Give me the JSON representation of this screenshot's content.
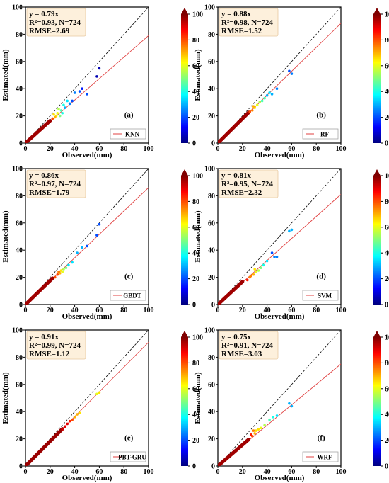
{
  "colorbar_ticks": [
    "0",
    "20",
    "40",
    "60",
    "80",
    "100"
  ],
  "colormap": [
    "#00007f",
    "#0000ff",
    "#007fff",
    "#00ffff",
    "#7fff7f",
    "#ffff00",
    "#ff7f00",
    "#ff0000",
    "#7f0000"
  ],
  "chart_data": [
    {
      "type": "scatter",
      "label": "(a)",
      "legend": "KNN",
      "stats": [
        "y = 0.79x",
        "R²=0.93, N=724",
        "RMSE=2.69"
      ],
      "slope": 0.79,
      "xlabel": "Observed(mm)",
      "ylabel": "Estimated(mm)",
      "xlim": [
        0,
        100
      ],
      "ylim": [
        0,
        100
      ],
      "xticks": [
        0,
        20,
        40,
        60,
        80,
        100
      ],
      "yticks": [
        0,
        20,
        40,
        60,
        80,
        100
      ],
      "colorbar": {
        "min": 0,
        "max": 100
      },
      "N": 724,
      "points": [
        [
          60,
          55,
          5
        ],
        [
          58,
          49,
          5
        ],
        [
          50,
          36,
          20
        ],
        [
          46,
          40,
          15
        ],
        [
          44,
          38,
          20
        ],
        [
          40,
          37,
          25
        ],
        [
          38,
          31,
          20
        ],
        [
          36,
          29,
          25
        ],
        [
          34,
          31,
          35
        ],
        [
          32,
          26,
          30
        ],
        [
          31,
          28,
          40
        ],
        [
          30,
          22,
          40
        ],
        [
          29,
          24,
          45
        ],
        [
          28,
          20,
          50
        ],
        [
          27,
          25,
          55
        ],
        [
          26,
          22,
          60
        ],
        [
          25,
          20,
          65
        ],
        [
          24,
          19,
          70
        ],
        [
          23,
          21,
          65
        ],
        [
          22,
          18,
          80
        ]
      ],
      "dense": {
        "xmax": 20,
        "slope": 0.82,
        "c": "#a00000"
      }
    },
    {
      "type": "scatter",
      "label": "(b)",
      "legend": "RF",
      "stats": [
        "y = 0.88x",
        "R²=0.98, N=724",
        "RMSE=1.52"
      ],
      "slope": 0.88,
      "xlabel": "Observed(mm)",
      "ylabel": "Estimated(mm)",
      "xlim": [
        0,
        100
      ],
      "ylim": [
        0,
        100
      ],
      "xticks": [
        0,
        20,
        40,
        60,
        80,
        100
      ],
      "yticks": [
        0,
        20,
        40,
        60,
        80,
        100
      ],
      "colorbar": {
        "min": 0,
        "max": 100
      },
      "N": 724,
      "points": [
        [
          60,
          51,
          25
        ],
        [
          58,
          53,
          20
        ],
        [
          48,
          40,
          25
        ],
        [
          44,
          36,
          30
        ],
        [
          42,
          37,
          35
        ],
        [
          40,
          35,
          30
        ],
        [
          38,
          33,
          45
        ],
        [
          36,
          31,
          45
        ],
        [
          34,
          30,
          55
        ],
        [
          32,
          28,
          60
        ],
        [
          30,
          26,
          65
        ],
        [
          29,
          27,
          70
        ],
        [
          28,
          24,
          75
        ],
        [
          26,
          23,
          80
        ]
      ],
      "dense": {
        "xmax": 25,
        "slope": 0.9,
        "c": "#a00000"
      }
    },
    {
      "type": "scatter",
      "label": "(c)",
      "legend": "GBDT",
      "stats": [
        "y = 0.86x",
        "R²=0.97, N=724",
        "RMSE=1.79"
      ],
      "slope": 0.86,
      "xlabel": "Observed(mm)",
      "ylabel": "Estimated(mm)",
      "xlim": [
        0,
        100
      ],
      "ylim": [
        0,
        100
      ],
      "xticks": [
        0,
        20,
        40,
        60,
        80,
        100
      ],
      "yticks": [
        0,
        20,
        40,
        60,
        80,
        100
      ],
      "colorbar": {
        "min": 0,
        "max": 100
      },
      "N": 724,
      "points": [
        [
          60,
          59,
          20
        ],
        [
          58,
          51,
          20
        ],
        [
          50,
          43,
          20
        ],
        [
          46,
          42,
          30
        ],
        [
          42,
          38,
          30
        ],
        [
          38,
          31,
          35
        ],
        [
          35,
          29,
          35
        ],
        [
          33,
          27,
          50
        ],
        [
          31,
          26,
          55
        ],
        [
          30,
          24,
          60
        ],
        [
          29,
          25,
          65
        ],
        [
          28,
          23,
          70
        ],
        [
          27,
          24,
          75
        ],
        [
          26,
          22,
          80
        ],
        [
          24,
          20,
          80
        ]
      ],
      "dense": {
        "xmax": 22,
        "slope": 0.88,
        "c": "#a00000"
      }
    },
    {
      "type": "scatter",
      "label": "(d)",
      "legend": "SVM",
      "stats": [
        "y = 0.81x",
        "R²=0.95, N=724",
        "RMSE=2.32"
      ],
      "slope": 0.81,
      "xlabel": "Observed(mm)",
      "ylabel": "Estimated(mm)",
      "xlim": [
        0,
        100
      ],
      "ylim": [
        0,
        100
      ],
      "xticks": [
        0,
        20,
        40,
        60,
        80,
        100
      ],
      "yticks": [
        0,
        20,
        40,
        60,
        80,
        100
      ],
      "colorbar": {
        "min": 0,
        "max": 100
      },
      "N": 724,
      "points": [
        [
          60,
          55,
          30
        ],
        [
          58,
          54,
          30
        ],
        [
          48,
          35,
          25
        ],
        [
          46,
          35,
          25
        ],
        [
          44,
          38,
          20
        ],
        [
          40,
          32,
          35
        ],
        [
          37,
          29,
          40
        ],
        [
          35,
          27,
          50
        ],
        [
          33,
          25,
          55
        ],
        [
          31,
          24,
          60
        ],
        [
          30,
          26,
          65
        ],
        [
          29,
          22,
          70
        ],
        [
          27,
          21,
          75
        ],
        [
          26,
          20,
          75
        ],
        [
          24,
          18,
          85
        ]
      ],
      "dense": {
        "xmax": 20,
        "slope": 0.84,
        "c": "#a00000"
      }
    },
    {
      "type": "scatter",
      "label": "(e)",
      "legend": "PBT-GRU",
      "stats": [
        "y = 0.91x",
        "R²=0.99, N=724",
        "RMSE=1.12"
      ],
      "slope": 0.91,
      "xlabel": "Observed(mm)",
      "ylabel": "Estimated(mm)",
      "xlim": [
        0,
        100
      ],
      "ylim": [
        0,
        100
      ],
      "xticks": [
        0,
        20,
        40,
        60,
        80,
        100
      ],
      "yticks": [
        0,
        20,
        40,
        60,
        80,
        100
      ],
      "colorbar": {
        "min": 0,
        "max": 100
      },
      "N": 724,
      "points": [
        [
          60,
          54,
          65
        ],
        [
          58,
          53,
          60
        ],
        [
          44,
          39,
          65
        ],
        [
          42,
          38,
          70
        ],
        [
          40,
          36,
          70
        ],
        [
          38,
          34,
          80
        ],
        [
          36,
          33,
          85
        ],
        [
          34,
          31,
          90
        ],
        [
          32,
          29,
          90
        ],
        [
          30,
          27,
          92
        ]
      ],
      "dense": {
        "xmax": 30,
        "slope": 0.91,
        "c": "#9a0000"
      }
    },
    {
      "type": "scatter",
      "label": "(f)",
      "legend": "WRF",
      "stats": [
        "y = 0.75x",
        "R²=0.91, N=724",
        "RMSE=3.03"
      ],
      "slope": 0.75,
      "xlabel": "Observed(mm)",
      "ylabel": "Estimated(mm)",
      "xlim": [
        0,
        100
      ],
      "ylim": [
        0,
        100
      ],
      "xticks": [
        0,
        20,
        40,
        60,
        80,
        100
      ],
      "yticks": [
        0,
        20,
        40,
        60,
        80,
        100
      ],
      "colorbar": {
        "min": 0,
        "max": 100
      },
      "N": 724,
      "points": [
        [
          60,
          44,
          30
        ],
        [
          58,
          46,
          30
        ],
        [
          48,
          37,
          35
        ],
        [
          45,
          36,
          40
        ],
        [
          42,
          34,
          45
        ],
        [
          38,
          30,
          55
        ],
        [
          35,
          28,
          60
        ],
        [
          33,
          27,
          65
        ],
        [
          31,
          26,
          65
        ],
        [
          30,
          24,
          70
        ],
        [
          29,
          26,
          75
        ],
        [
          28,
          22,
          80
        ],
        [
          27,
          23,
          85
        ]
      ],
      "dense": {
        "xmax": 25,
        "slope": 0.78,
        "c": "#a00000"
      }
    }
  ]
}
